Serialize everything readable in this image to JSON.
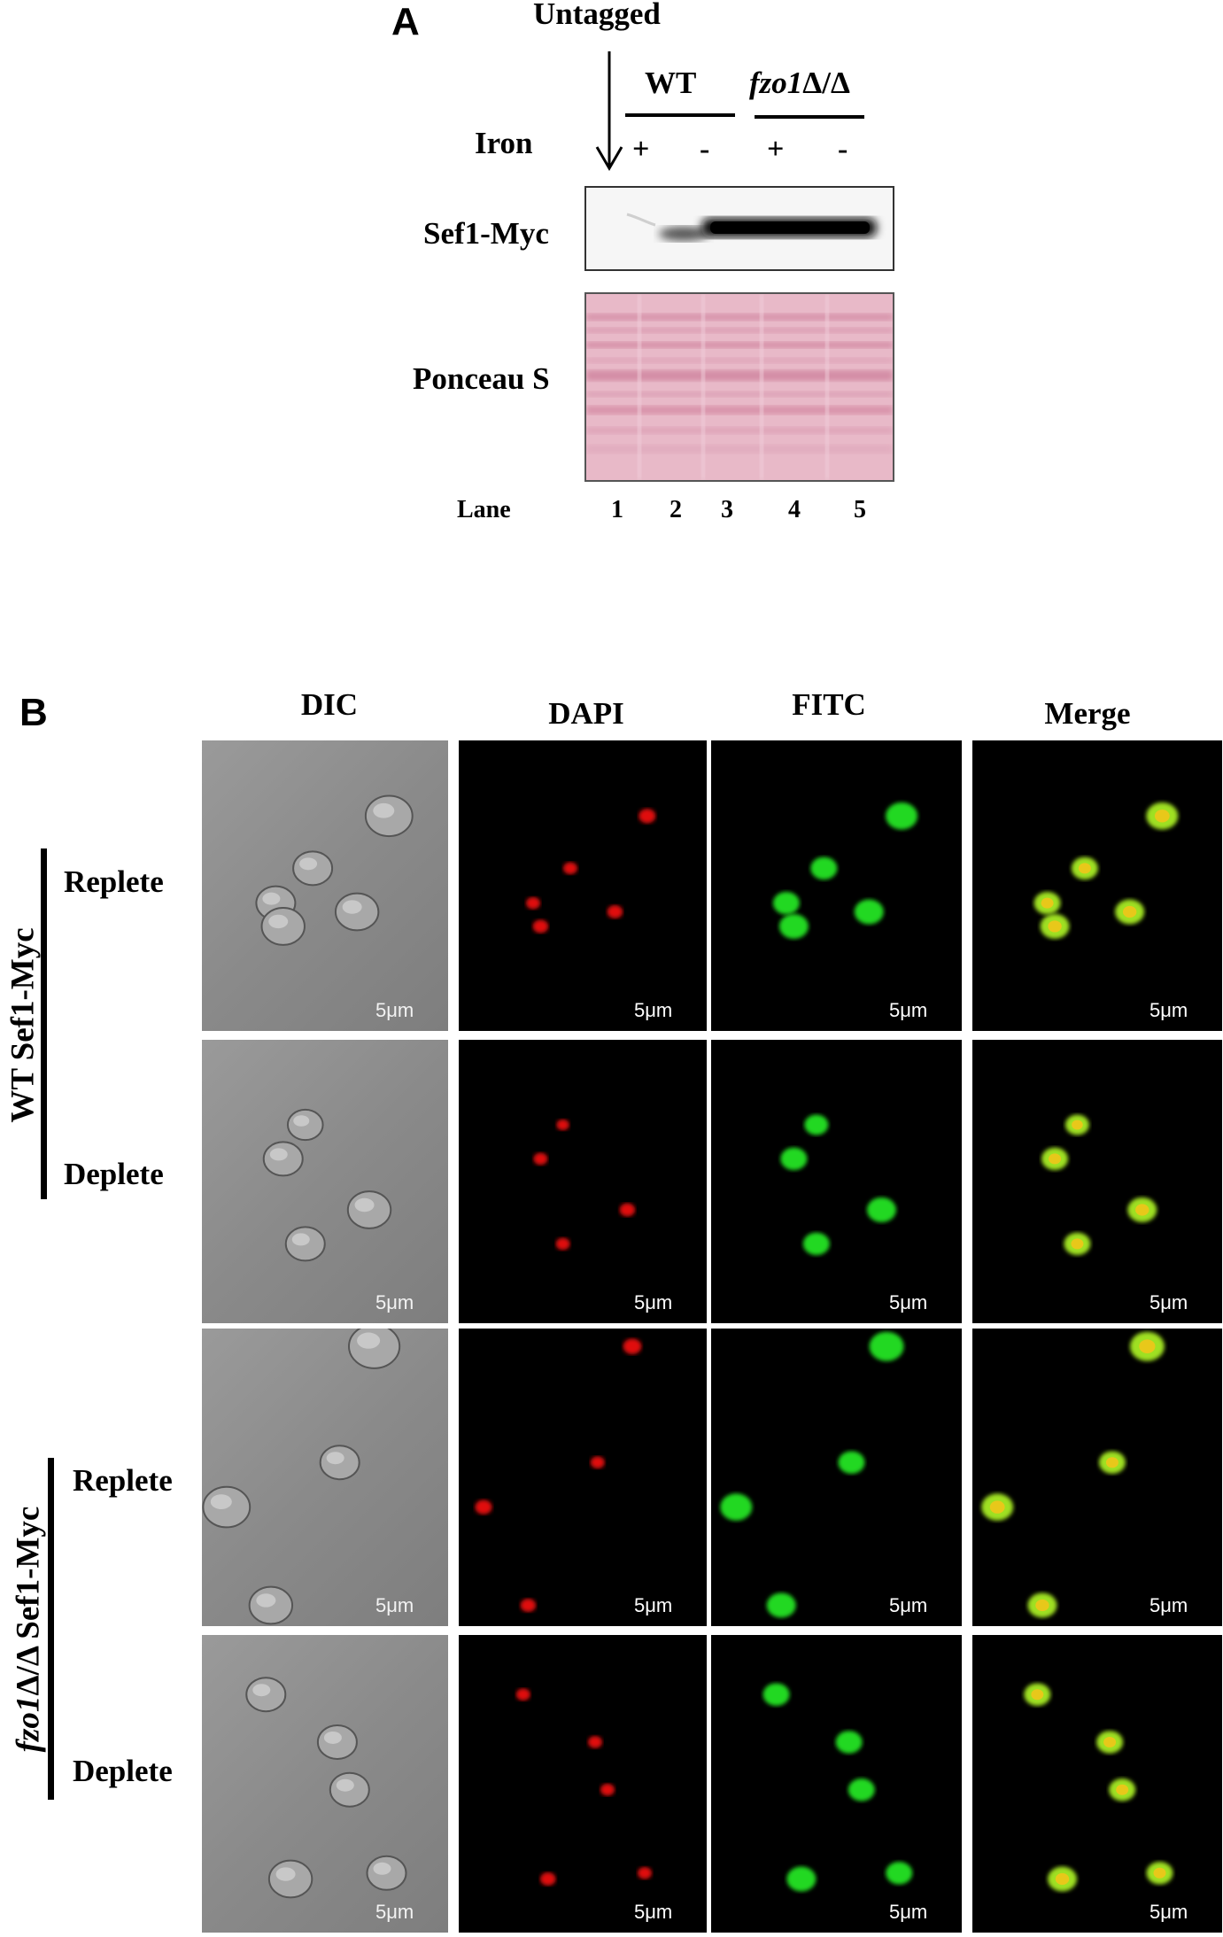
{
  "panel_a": {
    "letter": "A",
    "untagged_label": "Untagged",
    "group_wt": "WT",
    "group_mutant_gene": "fzo1",
    "group_mutant_suffix": "Δ/Δ",
    "iron_label": "Iron",
    "iron_signs": [
      "+",
      "-",
      "+",
      "-"
    ],
    "blot_label": "Sef1-Myc",
    "stain_label": "Ponceau S",
    "lane_label": "Lane",
    "lane_numbers": [
      "1",
      "2",
      "3",
      "4",
      "5"
    ]
  },
  "panel_b": {
    "letter": "B",
    "columns": [
      "DIC",
      "DAPI",
      "FITC",
      "Merge"
    ],
    "scale_label": "5μm",
    "groups": [
      {
        "gene": "",
        "label": "WT Sef1-Myc",
        "rows": [
          "Replete",
          "Deplete"
        ]
      },
      {
        "gene": "fzo1",
        "label": "Δ/Δ Sef1-Myc",
        "rows": [
          "Replete",
          "Deplete"
        ]
      }
    ]
  }
}
